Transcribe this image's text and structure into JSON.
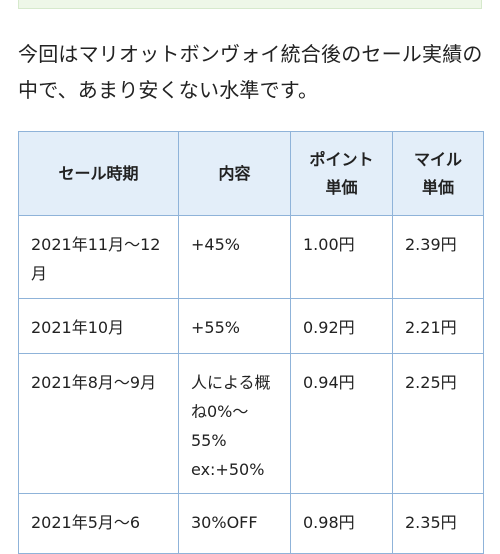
{
  "intro_text": "今回はマリオットボンヴォイ統合後のセール実績の中で、あまり安くない水準です。",
  "table": {
    "headers": [
      "セール時期",
      "内容",
      "ポイント\n単価",
      "マイル\n単価"
    ],
    "rows": [
      [
        "2021年11月〜12月",
        "+45%",
        "1.00円",
        "2.39円"
      ],
      [
        "2021年10月",
        "+55%",
        "0.92円",
        "2.21円"
      ],
      [
        "2021年8月〜9月",
        "人による概ね0%〜55%\nex:+50%",
        "0.94円",
        "2.25円"
      ],
      [
        "2021年5月〜6",
        "30%OFF",
        "0.98円",
        "2.35円"
      ]
    ]
  },
  "colors": {
    "header_bg": "#e3eef9",
    "border": "#8fb3d9",
    "top_box_bg": "#eef7e8"
  }
}
